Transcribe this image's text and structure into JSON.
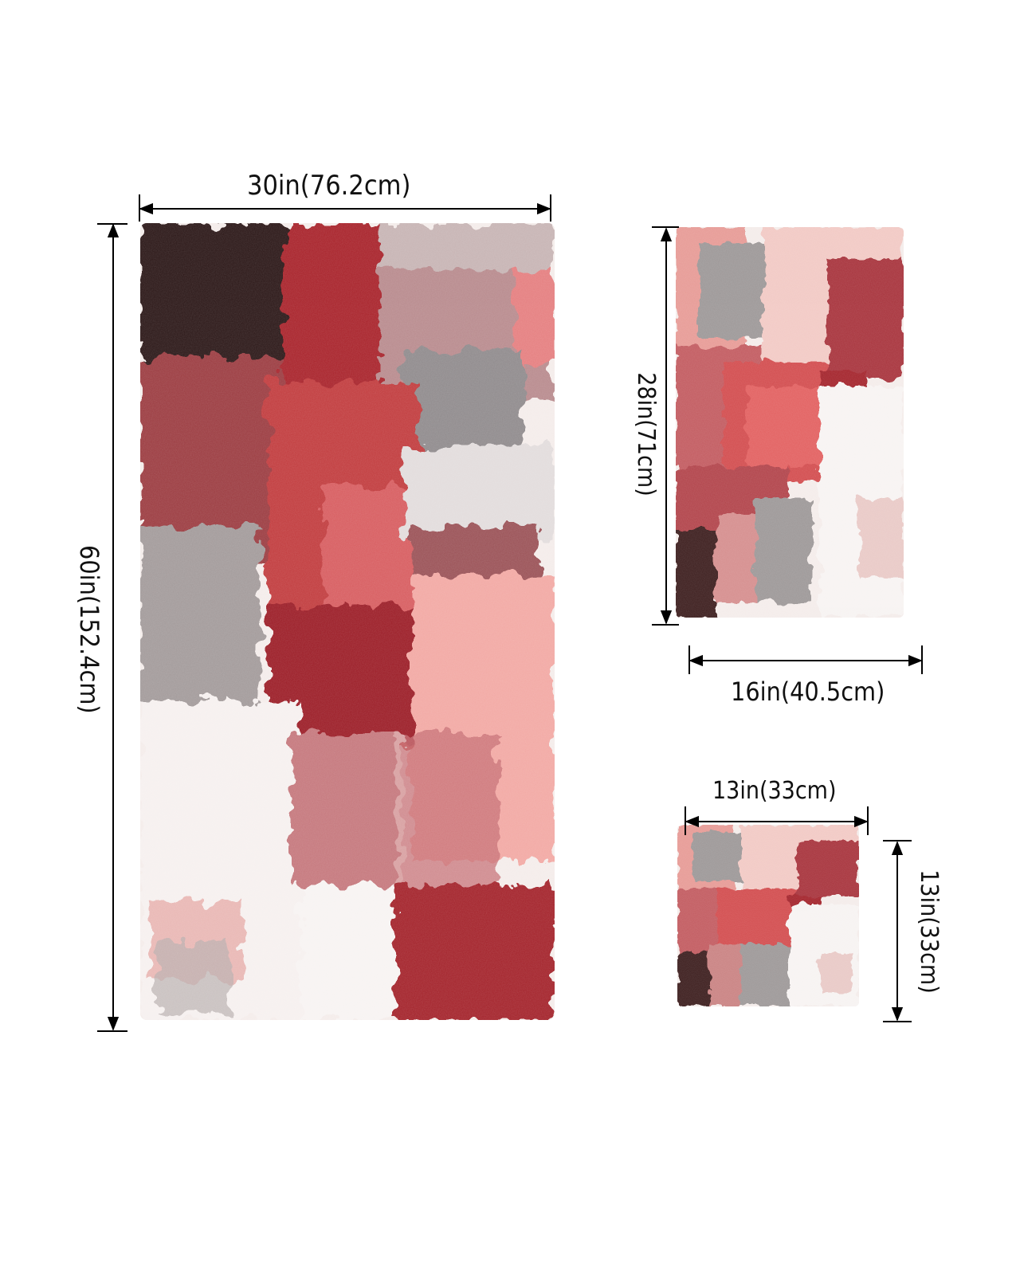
{
  "dimensions": {
    "large": {
      "width_label": "30in(76.2cm)",
      "height_label": "60in(152.4cm)"
    },
    "medium": {
      "width_label": "16in(40.5cm)",
      "height_label": "28in(71cm)"
    },
    "small": {
      "width_label": "13in(33cm)",
      "height_label": "13in(33cm)"
    }
  },
  "palette": {
    "deep_red": "#9b1c25",
    "crimson": "#b5313a",
    "coral": "#e0676a",
    "salmon": "#f2a8a3",
    "blush": "#f6d6d3",
    "grey": "#9c9797",
    "charcoal": "#2a1416",
    "white": "#f7f3f2"
  }
}
